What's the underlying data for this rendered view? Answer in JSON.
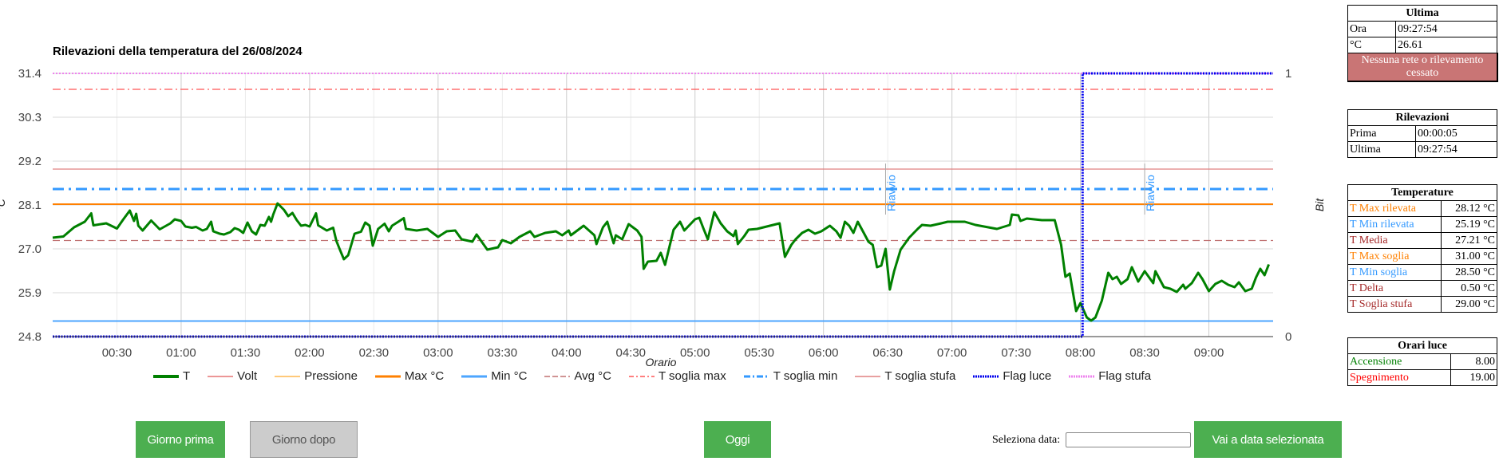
{
  "chart_data": {
    "type": "line",
    "title": "Rilevazioni della temperatura del 26/08/2024",
    "xlabel": "Orario",
    "ylabel": "°C",
    "y2label": "Bit",
    "xlim_minutes": [
      0,
      570
    ],
    "ylim": [
      24.8,
      31.4
    ],
    "y2lim": [
      0,
      1
    ],
    "yticks": [
      "31.4",
      "30.3",
      "29.2",
      "28.1",
      "27.0",
      "25.9",
      "24.8"
    ],
    "y2ticks": [
      "1",
      "0"
    ],
    "xticks": [
      "00:30",
      "01:00",
      "01:30",
      "02:00",
      "02:30",
      "03:00",
      "03:30",
      "04:00",
      "04:30",
      "05:00",
      "05:30",
      "06:00",
      "06:30",
      "07:00",
      "07:30",
      "08:00",
      "08:30",
      "09:00"
    ],
    "legend": [
      "T",
      "Volt",
      "Pressione",
      "Max °C",
      "Min °C",
      "Avg °C",
      "T soglia max",
      "T soglia min",
      "T soglia stufa",
      "Flag luce",
      "Flag stufa"
    ],
    "constant_series": {
      "Max °C": 28.12,
      "Min °C": 25.19,
      "Avg °C": 27.21,
      "T soglia max": 31.0,
      "T soglia min": 28.5,
      "T soglia stufa": 29.0,
      "Flag stufa": 1
    },
    "flag_luce": {
      "minutes": [
        0,
        481,
        481,
        570
      ],
      "values": [
        0,
        0,
        1,
        1
      ]
    },
    "annotations": [
      {
        "minute": 389,
        "text": "Riavvio"
      },
      {
        "minute": 510,
        "text": "Riavvio"
      }
    ],
    "series_T": {
      "minutes": [
        0,
        5,
        10,
        15,
        18,
        19,
        25,
        30,
        33,
        36,
        38,
        39,
        40,
        42,
        46,
        50,
        55,
        57,
        60,
        62,
        65,
        67,
        70,
        72,
        74,
        75,
        78,
        80,
        83,
        85,
        87,
        89,
        91,
        93,
        95,
        97,
        99,
        101,
        102,
        103,
        105,
        108,
        110,
        112,
        114,
        116,
        118,
        120,
        123,
        124,
        128,
        131,
        132.5,
        134,
        136,
        138,
        141,
        144,
        146,
        148,
        149.5,
        152,
        155,
        157,
        158.5,
        162,
        164,
        165,
        170,
        175,
        180,
        184,
        188,
        191,
        196,
        198,
        203,
        208,
        210,
        214,
        218,
        223,
        225,
        230,
        235,
        238,
        241,
        242,
        248,
        253,
        254,
        257,
        259,
        262,
        263,
        266,
        269,
        273,
        275,
        276,
        278,
        282,
        284,
        286,
        290,
        293,
        295,
        300,
        302,
        304,
        306,
        309,
        312,
        315,
        318,
        319,
        320,
        323,
        325,
        329,
        339.5,
        342,
        345,
        347,
        350,
        353,
        356,
        359,
        363,
        366,
        368,
        370,
        372,
        374,
        376,
        379,
        381,
        383,
        385,
        387,
        389,
        391,
        393,
        396,
        400,
        404,
        406,
        410,
        415,
        418,
        422,
        426,
        431,
        441,
        447,
        448,
        451,
        452,
        455,
        462,
        468,
        471,
        473,
        475,
        478,
        480,
        483,
        485,
        487,
        490,
        493,
        495,
        497,
        499,
        502,
        504,
        507,
        510,
        514,
        515,
        519,
        522,
        525,
        528,
        529,
        532,
        535,
        537,
        540,
        543,
        546,
        549,
        552,
        554,
        557,
        560,
        562,
        564,
        566,
        568
      ],
      "values": [
        27.28,
        27.31,
        27.54,
        27.68,
        27.89,
        27.59,
        27.64,
        27.51,
        27.74,
        27.96,
        27.7,
        27.88,
        27.58,
        27.46,
        27.71,
        27.49,
        27.64,
        27.74,
        27.7,
        27.56,
        27.53,
        27.55,
        27.46,
        27.5,
        27.68,
        27.44,
        27.38,
        27.36,
        27.42,
        27.52,
        27.48,
        27.4,
        27.66,
        27.44,
        27.36,
        27.6,
        27.58,
        27.8,
        27.68,
        27.86,
        28.14,
        27.98,
        27.82,
        27.9,
        27.72,
        27.58,
        27.6,
        27.56,
        27.89,
        27.59,
        27.46,
        27.53,
        27.2,
        27.0,
        26.74,
        26.84,
        27.38,
        27.43,
        27.66,
        27.58,
        27.08,
        27.5,
        27.63,
        27.44,
        27.58,
        27.7,
        27.77,
        27.5,
        27.46,
        27.5,
        27.3,
        27.44,
        27.46,
        27.24,
        27.18,
        27.36,
        26.98,
        27.04,
        27.22,
        27.14,
        27.3,
        27.44,
        27.3,
        27.4,
        27.44,
        27.34,
        27.46,
        27.34,
        27.58,
        27.34,
        27.12,
        27.54,
        27.68,
        27.14,
        27.34,
        27.24,
        27.62,
        27.46,
        27.3,
        26.5,
        26.68,
        26.7,
        26.9,
        26.6,
        27.48,
        27.68,
        27.46,
        27.74,
        27.78,
        27.5,
        27.24,
        27.92,
        27.64,
        27.44,
        27.32,
        27.46,
        27.12,
        27.32,
        27.48,
        27.5,
        27.64,
        26.8,
        27.1,
        27.24,
        27.4,
        27.48,
        27.38,
        27.44,
        27.58,
        27.44,
        27.28,
        27.68,
        27.58,
        27.4,
        27.68,
        27.38,
        27.18,
        27.1,
        26.54,
        26.58,
        27.0,
        25.98,
        26.44,
        26.98,
        27.28,
        27.5,
        27.6,
        27.58,
        27.64,
        27.68,
        27.68,
        27.68,
        27.6,
        27.5,
        27.6,
        27.86,
        27.84,
        27.7,
        27.76,
        27.72,
        27.72,
        27.1,
        26.3,
        26.38,
        25.44,
        25.64,
        25.28,
        25.2,
        25.28,
        25.7,
        26.4,
        26.24,
        26.3,
        26.12,
        26.24,
        26.54,
        26.18,
        26.44,
        26.14,
        26.44,
        26.04,
        26.0,
        25.92,
        26.1,
        26.0,
        26.14,
        26.4,
        26.24,
        25.94,
        26.12,
        26.2,
        26.1,
        26.04,
        26.16,
        25.94,
        26.0,
        26.28,
        26.5,
        26.34,
        26.61
      ]
    }
  },
  "colors": {
    "T": "#008000",
    "Volt": "#e57373",
    "Pressione": "#ffb74d",
    "Max °C": "#ff8000",
    "Min °C": "#4da6ff",
    "Avg °C": "#c07070",
    "T soglia max": "#ff5555",
    "T soglia min": "#3399ff",
    "T soglia stufa": "#e08080",
    "Flag luce": "#0000ee",
    "Flag stufa": "#ee82ee",
    "button": "#4caf50",
    "alert": "#c97575"
  },
  "buttons": {
    "prev_day": "Giorno prima",
    "next_day": "Giorno dopo",
    "today": "Oggi",
    "go_to_date": "Vai a data selezionata"
  },
  "date_select": {
    "label": "Seleziona data:",
    "value": ""
  },
  "ultima": {
    "title": "Ultima",
    "rows": [
      {
        "label": "Ora",
        "value": "09:27:54"
      },
      {
        "label": "°C",
        "value": "26.61"
      }
    ],
    "status": "Nessuna rete o rilevamento cessato"
  },
  "rilevazioni": {
    "title": "Rilevazioni",
    "rows": [
      {
        "label": "Prima",
        "value": "00:00:05"
      },
      {
        "label": "Ultima",
        "value": "09:27:54"
      }
    ]
  },
  "temperature": {
    "title": "Temperature",
    "rows": [
      {
        "label": "T Max rilevata",
        "value": "28.12 °C",
        "color": "#ff8000"
      },
      {
        "label": "T Min rilevata",
        "value": "25.19 °C",
        "color": "#3399ff"
      },
      {
        "label": "T Media",
        "value": "27.21 °C",
        "color": "#a52a2a"
      },
      {
        "label": "T Max soglia",
        "value": "31.00 °C",
        "color": "#ff8000"
      },
      {
        "label": "T Min soglia",
        "value": "28.50 °C",
        "color": "#3399ff"
      },
      {
        "label": "T Delta",
        "value": "0.50 °C",
        "color": "#a52a2a"
      },
      {
        "label": "T Soglia stufa",
        "value": "29.00 °C",
        "color": "#a52a2a"
      }
    ]
  },
  "orari_luce": {
    "title": "Orari luce",
    "rows": [
      {
        "label": "Accensione",
        "value": "8.00",
        "color": "#008000"
      },
      {
        "label": "Spegnimento",
        "value": "19.00",
        "color": "#ff0000"
      }
    ]
  }
}
